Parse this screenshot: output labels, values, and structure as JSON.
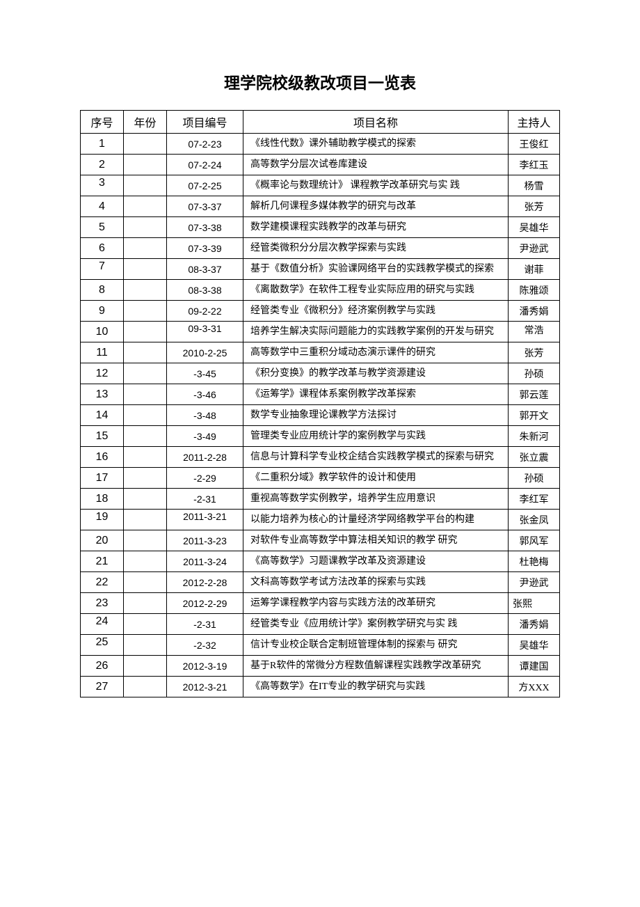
{
  "title": "理学院校级教改项目一览表",
  "table": {
    "columns": [
      "序号",
      "年份",
      "项目编号",
      "项目名称",
      "主持人"
    ],
    "rows": [
      {
        "seq": "1",
        "year": "",
        "code": "07-2-23",
        "name": "《线性代数》课外辅助教学模式的探索",
        "host": "王俊红"
      },
      {
        "seq": "2",
        "year": "",
        "code": "07-2-24",
        "name": "高等数学分层次试卷库建设",
        "host": "李红玉"
      },
      {
        "seq": "3",
        "year": "",
        "code": "07-2-25",
        "name": "《概率论与数理统计》 课程教学改革研究与实  践",
        "host": "杨雪",
        "seqTop": true
      },
      {
        "seq": "4",
        "year": "",
        "code": "07-3-37",
        "name": "解析几何课程多媒体教学的研究与改革",
        "host": "张芳"
      },
      {
        "seq": "5",
        "year": "",
        "code": "07-3-38",
        "name": "数学建模课程实践教学的改革与研究",
        "host": "吴雄华"
      },
      {
        "seq": "6",
        "year": "",
        "code": "07-3-39",
        "name": "经管类微积分分层次教学探索与实践",
        "host": "尹逊武"
      },
      {
        "seq": "7",
        "year": "",
        "code": "08-3-37",
        "name": "基于《数值分析》实验课网络平台的实践教学模式的探索",
        "host": "谢菲",
        "seqTop": true
      },
      {
        "seq": "8",
        "year": "",
        "code": "08-3-38",
        "name": "《离散数学》在软件工程专业实际应用的研究与实践",
        "host": "陈雅颂"
      },
      {
        "seq": "9",
        "year": "",
        "code": "09-2-22",
        "name": "经管类专业《微积分》经济案例教学与实践",
        "host": "潘秀娟"
      },
      {
        "seq": "10",
        "year": "",
        "code": "09-3-31",
        "name": "培养学生解决实际问题能力的实践教学案例的开发与研究",
        "host": "常浩",
        "hostTop": true,
        "codeTop": true
      },
      {
        "seq": "11",
        "year": "",
        "code": "2010-2-25",
        "name": "高等数学中三重积分域动态演示课件的研究",
        "host": "张芳"
      },
      {
        "seq": "12",
        "year": "",
        "code": "-3-45",
        "name": "《积分变换》的教学改革与教学资源建设",
        "host": "孙硕"
      },
      {
        "seq": "13",
        "year": "",
        "code": "-3-46",
        "name": "《运筹学》课程体系案例教学改革探索",
        "host": "郭云莲"
      },
      {
        "seq": "14",
        "year": "",
        "code": "-3-48",
        "name": "数学专业抽象理论课教学方法探讨",
        "host": "郭开文"
      },
      {
        "seq": "15",
        "year": "",
        "code": "-3-49",
        "name": "管理类专业应用统计学的案例教学与实践",
        "host": "朱新河"
      },
      {
        "seq": "16",
        "year": "",
        "code": "2011-2-28",
        "name": "信息与计算科学专业校企结合实践教学模式的探索与研究",
        "host": "张立震"
      },
      {
        "seq": "17",
        "year": "",
        "code": "-2-29",
        "name": "《二重积分域》教学软件的设计和使用",
        "host": "孙硕"
      },
      {
        "seq": "18",
        "year": "",
        "code": "-2-31",
        "name": "重视高等数学实例教学，培养学生应用意识",
        "host": "李红军"
      },
      {
        "seq": "19",
        "year": "",
        "code": "2011-3-21",
        "name": "以能力培养为核心的计量经济学网络教学平台的构建",
        "host": "张金凤",
        "seqTop": true,
        "codeTop": true
      },
      {
        "seq": "20",
        "year": "",
        "code": "2011-3-23",
        "name": "对软件专业高等数学中算法相关知识的教学  研究",
        "host": "郭风军"
      },
      {
        "seq": "21",
        "year": "",
        "code": "2011-3-24",
        "name": "《高等数学》习题课教学改革及资源建设",
        "host": "杜艳梅"
      },
      {
        "seq": "22",
        "year": "",
        "code": "2012-2-28",
        "name": "文科高等数学考试方法改革的探索与实践",
        "host": "尹逊武"
      },
      {
        "seq": "23",
        "year": "",
        "code": "2012-2-29",
        "name": "运筹学课程教学内容与实践方法的改革研究",
        "host": "张熙",
        "hostLeft": true
      },
      {
        "seq": "24",
        "year": "",
        "code": "-2-31",
        "name": "经管类专业《应用统计学》案例教学研究与实  践",
        "host": "潘秀娟",
        "seqTop": true,
        "nameBottom": true
      },
      {
        "seq": "25",
        "year": "",
        "code": "-2-32",
        "name": "信计专业校企联合定制班管理体制的探索与  研究",
        "host": "吴雄华",
        "seqTop": true,
        "nameBottom": true
      },
      {
        "seq": "26",
        "year": "",
        "code": "2012-3-19",
        "name": "基于R软件的常微分方程数值解课程实践教学改革研究",
        "host": "谭建国"
      },
      {
        "seq": "27",
        "year": "",
        "code": "2012-3-21",
        "name": "《高等数学》在IT专业的教学研究与实践",
        "host": "方XXX"
      }
    ]
  }
}
